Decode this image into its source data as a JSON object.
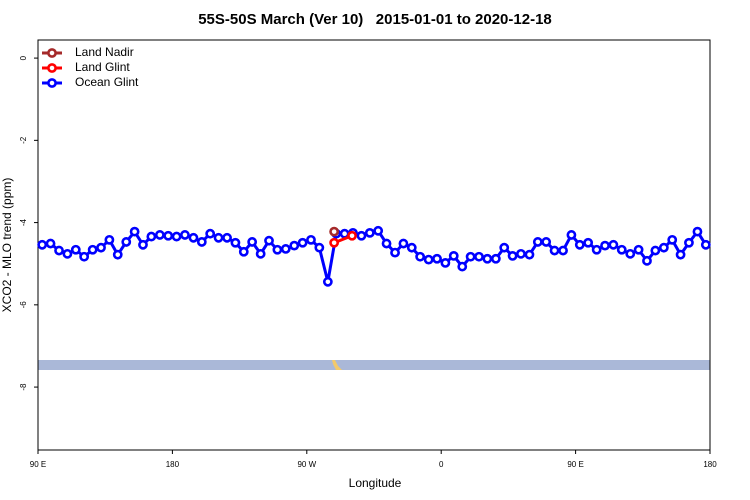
{
  "chart_data": {
    "type": "line",
    "title": "55S-50S March (Ver 10)   2015-01-01 to 2020-12-18",
    "x_label": "Longitude",
    "y_label": "XCO2 - MLO trend (ppm)",
    "xlim": [
      90,
      540
    ],
    "ylim": [
      -9.53,
      0.44
    ],
    "xticks": [
      {
        "value": 90,
        "label": "90 E"
      },
      180,
      {
        "value": 270,
        "label": "90 W"
      },
      {
        "value": 360,
        "label": "0"
      },
      {
        "value": 450,
        "label": "90 E"
      },
      {
        "value": 540,
        "label": "180"
      }
    ],
    "yticks": [
      0,
      -2,
      -4,
      -6,
      -8
    ],
    "legend_position": "top-left",
    "series": [
      {
        "name": "Land Nadir",
        "color": "#a52a2a",
        "x": [
          288.3
        ],
        "values": [
          -4.22
        ]
      },
      {
        "name": "Land Glint",
        "color": "#ff0000",
        "x": [
          288.3,
          300.3
        ],
        "values": [
          -4.49,
          -4.32
        ]
      },
      {
        "name": "Ocean Glint",
        "color": "#0000ff",
        "x": [
          92.8,
          98.4,
          104.1,
          109.7,
          115.3,
          120.9,
          126.6,
          132.2,
          137.8,
          143.4,
          149.1,
          154.7,
          160.3,
          165.9,
          171.6,
          177.2,
          182.8,
          188.4,
          194.1,
          199.7,
          205.3,
          210.9,
          216.6,
          222.2,
          227.8,
          233.4,
          239.1,
          244.7,
          250.3,
          255.9,
          261.6,
          267.2,
          272.8,
          278.4,
          284.1,
          289.7,
          295.3,
          300.9,
          306.6,
          312.2,
          317.8,
          323.4,
          329.1,
          334.7,
          340.3,
          345.9,
          351.6,
          357.2,
          362.8,
          368.4,
          374.1,
          379.7,
          385.3,
          390.9,
          396.6,
          402.2,
          407.8,
          413.4,
          419.1,
          424.7,
          430.3,
          435.9,
          441.6,
          447.2,
          452.8,
          458.4,
          464.1,
          469.7,
          475.3,
          480.9,
          486.6,
          492.2,
          497.8,
          503.4,
          509.1,
          514.7,
          520.3,
          525.9,
          531.6,
          537.2
        ],
        "values": [
          -4.54,
          -4.51,
          -4.68,
          -4.76,
          -4.66,
          -4.83,
          -4.66,
          -4.61,
          -4.42,
          -4.78,
          -4.47,
          -4.22,
          -4.54,
          -4.34,
          -4.3,
          -4.32,
          -4.34,
          -4.3,
          -4.37,
          -4.47,
          -4.27,
          -4.37,
          -4.37,
          -4.49,
          -4.71,
          -4.47,
          -4.76,
          -4.44,
          -4.66,
          -4.64,
          -4.56,
          -4.49,
          -4.42,
          -4.61,
          -5.44,
          -4.27,
          -4.27,
          -4.25,
          -4.32,
          -4.25,
          -4.2,
          -4.51,
          -4.73,
          -4.51,
          -4.61,
          -4.83,
          -4.9,
          -4.88,
          -4.98,
          -4.81,
          -5.07,
          -4.83,
          -4.83,
          -4.88,
          -4.88,
          -4.61,
          -4.81,
          -4.76,
          -4.78,
          -4.47,
          -4.47,
          -4.68,
          -4.68,
          -4.3,
          -4.54,
          -4.49,
          -4.66,
          -4.56,
          -4.54,
          -4.66,
          -4.76,
          -4.66,
          -4.93,
          -4.68,
          -4.61,
          -4.42,
          -4.78,
          -4.49,
          -4.22,
          -4.54
        ]
      }
    ]
  }
}
